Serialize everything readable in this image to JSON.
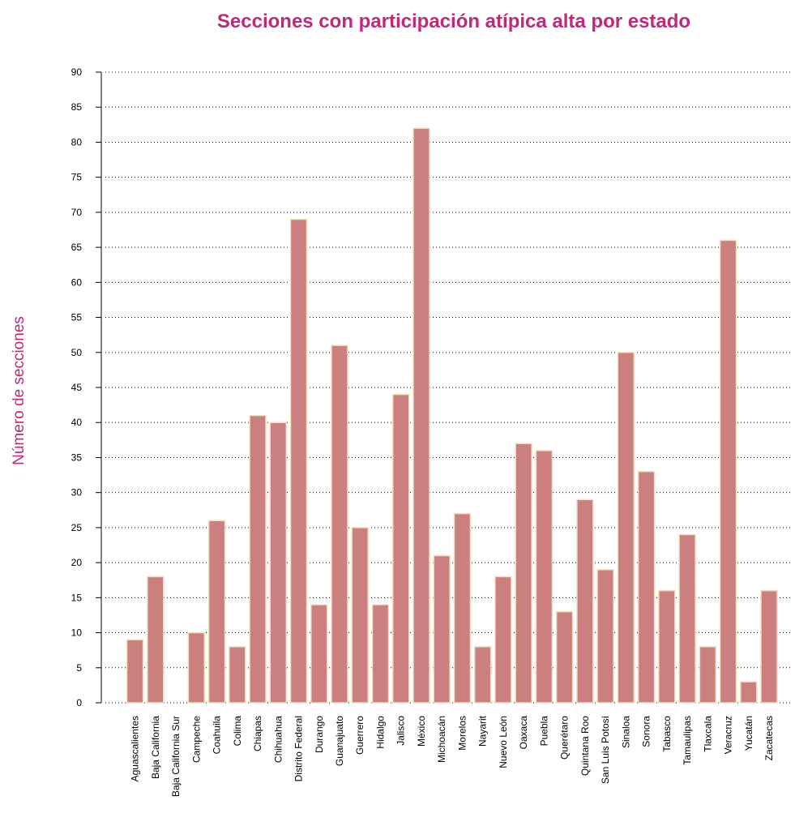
{
  "chart_data": {
    "type": "bar",
    "title": "Secciones con participación atípica alta por estado",
    "xlabel": "",
    "ylabel": "Número de secciones",
    "ylim": [
      0,
      90
    ],
    "yticks": [
      0,
      5,
      10,
      15,
      20,
      25,
      30,
      35,
      40,
      45,
      50,
      55,
      60,
      65,
      70,
      75,
      80,
      85,
      90
    ],
    "grid": true,
    "categories": [
      "Aguascalientes",
      "Baja California",
      "Baja California Sur",
      "Campeche",
      "Coahuila",
      "Colima",
      "Chiapas",
      "Chihuahua",
      "Distrito Federal",
      "Durango",
      "Guanajuato",
      "Guerrero",
      "Hidalgo",
      "Jalisco",
      "México",
      "Michoacán",
      "Morelos",
      "Nayarit",
      "Nuevo León",
      "Oaxaca",
      "Puebla",
      "Querétaro",
      "Quintana Roo",
      "San Luis Potosí",
      "Sinaloa",
      "Sonora",
      "Tabasco",
      "Tamaulipas",
      "Tlaxcala",
      "Veracruz",
      "Yucatán",
      "Zacatecas"
    ],
    "values": [
      9,
      18,
      0,
      10,
      26,
      8,
      41,
      40,
      69,
      14,
      51,
      25,
      14,
      44,
      82,
      21,
      27,
      8,
      18,
      37,
      36,
      13,
      29,
      19,
      50,
      33,
      16,
      24,
      8,
      66,
      3,
      16
    ],
    "colors": {
      "bar": "#cc7f7f",
      "bar_border": "#f3dfc0",
      "title": "#c2277a"
    }
  }
}
